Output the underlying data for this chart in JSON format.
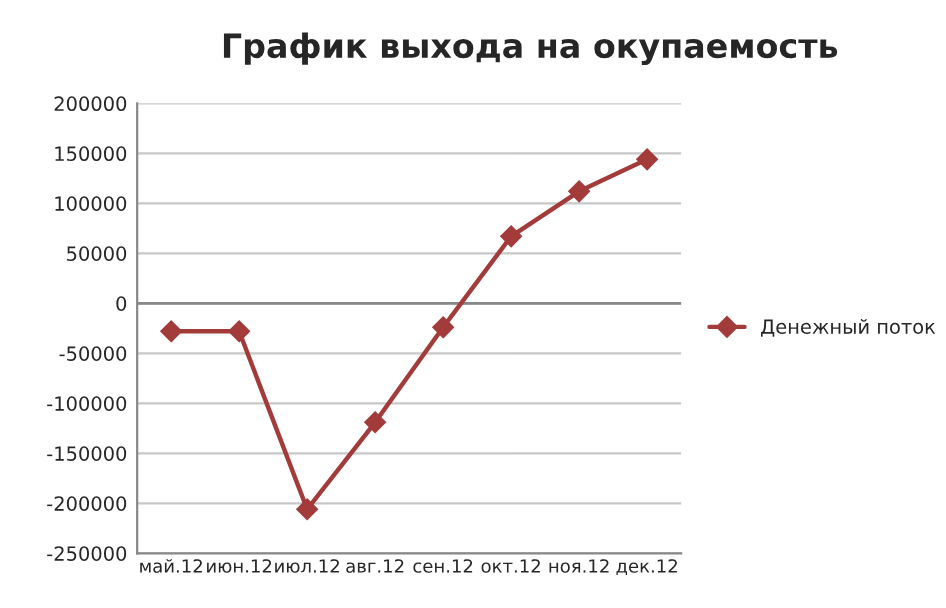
{
  "chart_data": {
    "type": "line",
    "title": "График выхода на окупаемость",
    "categories": [
      "май.12",
      "июн.12",
      "июл.12",
      "авг.12",
      "сен.12",
      "окт.12",
      "ноя.12",
      "дек.12"
    ],
    "series": [
      {
        "name": "Денежный поток",
        "color": "#a33b3b",
        "values": [
          -28000,
          -28000,
          -206000,
          -119000,
          -24000,
          67000,
          112000,
          144000
        ]
      }
    ],
    "ylim": [
      -250000,
      200000
    ],
    "yticks": [
      -250000,
      -200000,
      -150000,
      -100000,
      -50000,
      0,
      50000,
      100000,
      150000,
      200000
    ],
    "grid": "y",
    "legend": "right",
    "marker": "diamond",
    "line_style": "solid"
  }
}
